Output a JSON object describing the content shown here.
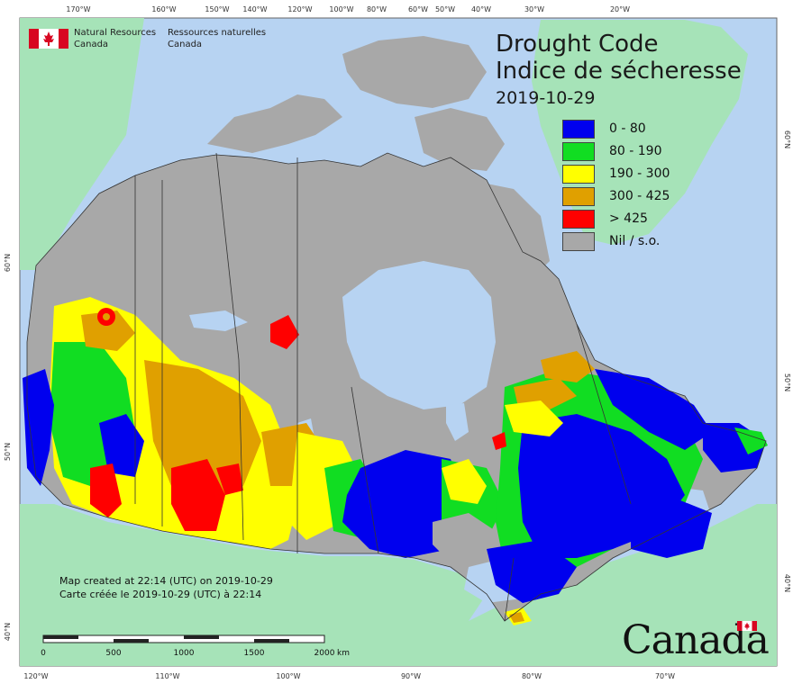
{
  "agency": {
    "name_en_line1": "Natural Resources",
    "name_en_line2": "Canada",
    "name_fr_line1": "Ressources naturelles",
    "name_fr_line2": "Canada"
  },
  "title": {
    "en": "Drought Code",
    "fr": "Indice de sécheresse",
    "date": "2019-10-29"
  },
  "legend": [
    {
      "label": "0 - 80",
      "color": "#0000ee"
    },
    {
      "label": "80 - 190",
      "color": "#11dd22"
    },
    {
      "label": "190 - 300",
      "color": "#ffff00"
    },
    {
      "label": "300 - 425",
      "color": "#e0a000"
    },
    {
      "label": "> 425",
      "color": "#ff0000"
    },
    {
      "label": "Nil / s.o.",
      "color": "#a8a8a8"
    }
  ],
  "credits": {
    "created_en": "Map created at 22:14 (UTC) on 2019-10-29",
    "created_fr": "Carte créée le 2019-10-29 (UTC) à 22:14"
  },
  "scale": {
    "labels": [
      "0",
      "500",
      "1000",
      "1500",
      "2000"
    ],
    "unit": "km"
  },
  "graticule": {
    "top": [
      "170°W",
      "160°W",
      "150°W",
      "140°W",
      "120°W",
      "100°W",
      "80°W",
      "60°W",
      "50°W",
      "40°W",
      "30°W",
      "20°W"
    ],
    "bottom": [
      "120°W",
      "110°W",
      "100°W",
      "90°W",
      "80°W",
      "70°W"
    ],
    "left": [
      "60°N",
      "50°N",
      "40°N"
    ],
    "right": [
      "60°N",
      "50°N",
      "40°N"
    ]
  },
  "wordmark": "Canada",
  "colors": {
    "ocean": "#b7d3f2",
    "foreign_land": "#a6e3b8",
    "nodata": "#a8a8a8",
    "water": "#b7d3f2"
  }
}
